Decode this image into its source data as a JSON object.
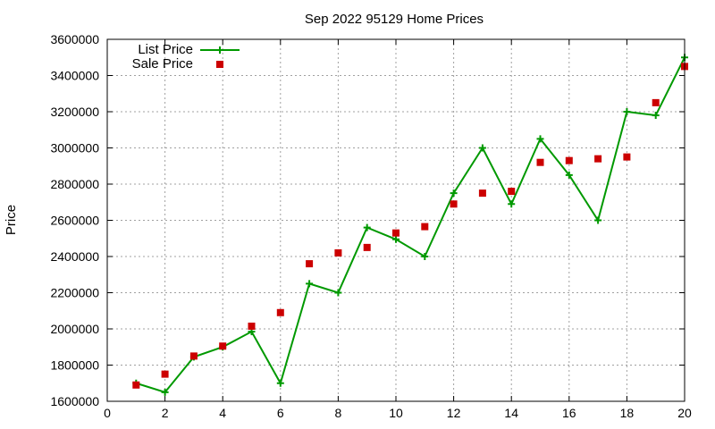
{
  "chart_data": {
    "type": "line",
    "title": "Sep 2022 95129 Home Prices",
    "xlabel": "",
    "ylabel": "Price",
    "xlim": [
      0,
      20
    ],
    "ylim": [
      1600000,
      3600000
    ],
    "xticks": [
      "0",
      "2",
      "4",
      "6",
      "8",
      "10",
      "12",
      "14",
      "16",
      "18",
      "20"
    ],
    "yticks": [
      "1600000",
      "1800000",
      "2000000",
      "2200000",
      "2400000",
      "2600000",
      "2800000",
      "3000000",
      "3200000",
      "3400000",
      "3600000"
    ],
    "grid": true,
    "legend_position": "top-left",
    "series": [
      {
        "name": "List Price",
        "style": "line-with-plus-markers",
        "color": "#009900",
        "x": [
          1,
          2,
          3,
          4,
          5,
          6,
          7,
          8,
          9,
          10,
          11,
          12,
          13,
          14,
          15,
          16,
          17,
          18,
          19,
          20
        ],
        "y": [
          1700000,
          1650000,
          1845000,
          1900000,
          1985000,
          1700000,
          2250000,
          2200000,
          2560000,
          2495000,
          2400000,
          2750000,
          3000000,
          2690000,
          3050000,
          2850000,
          2600000,
          3200000,
          3180000,
          3500000
        ]
      },
      {
        "name": "Sale Price",
        "style": "square-markers",
        "color": "#cc0000",
        "x": [
          1,
          2,
          3,
          4,
          5,
          6,
          7,
          8,
          9,
          10,
          11,
          12,
          13,
          14,
          15,
          16,
          17,
          18,
          19,
          20
        ],
        "y": [
          1690000,
          1750000,
          1850000,
          1905000,
          2015000,
          2090000,
          2360000,
          2420000,
          2450000,
          2530000,
          2565000,
          2690000,
          2750000,
          2760000,
          2920000,
          2930000,
          2940000,
          2950000,
          3250000,
          3450000
        ]
      }
    ]
  }
}
